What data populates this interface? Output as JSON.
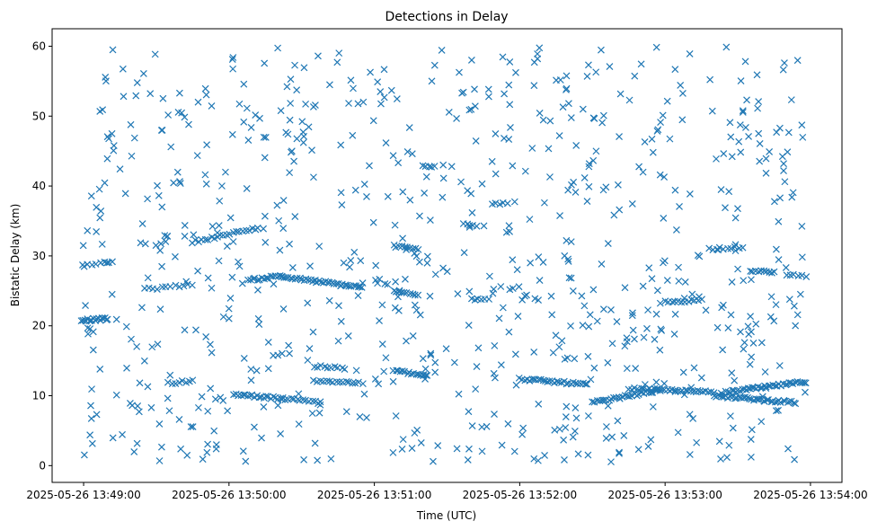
{
  "chart_data": {
    "type": "scatter",
    "title": "Detections in Delay",
    "xlabel": "Time (UTC)",
    "ylabel": "Bistatic Delay (km)",
    "marker": "x",
    "color": "#1f77b4",
    "grid": false,
    "xlim": [
      "2025-05-26 13:48:47",
      "2025-05-26 13:54:13"
    ],
    "ylim": [
      -2.4,
      62.5
    ],
    "x_ticks": [
      "2025-05-26 13:49:00",
      "2025-05-26 13:50:00",
      "2025-05-26 13:51:00",
      "2025-05-26 13:52:00",
      "2025-05-26 13:53:00",
      "2025-05-26 13:54:00"
    ],
    "y_ticks": [
      "0",
      "10",
      "20",
      "30",
      "40",
      "50",
      "60"
    ],
    "points_note": "",
    "tracks": [
      {
        "x": [
          "2025-05-26 13:48:59",
          "2025-05-26 13:49:10"
        ],
        "y": [
          20.8,
          21.0
        ],
        "n": 18
      },
      {
        "x": [
          "2025-05-26 13:49:00",
          "2025-05-26 13:49:12"
        ],
        "y": [
          28.5,
          29.3
        ],
        "n": 8
      },
      {
        "x": [
          "2025-05-26 13:49:25",
          "2025-05-26 13:49:45"
        ],
        "y": [
          25.2,
          25.9
        ],
        "n": 12
      },
      {
        "x": [
          "2025-05-26 13:49:35",
          "2025-05-26 13:49:45"
        ],
        "y": [
          11.8,
          12.1
        ],
        "n": 8
      },
      {
        "x": [
          "2025-05-26 13:49:45",
          "2025-05-26 13:50:12"
        ],
        "y": [
          32.0,
          34.0
        ],
        "n": 22
      },
      {
        "x": [
          "2025-05-26 13:50:02",
          "2025-05-26 13:50:22"
        ],
        "y": [
          10.2,
          9.6
        ],
        "n": 22
      },
      {
        "x": [
          "2025-05-26 13:50:08",
          "2025-05-26 13:50:22"
        ],
        "y": [
          26.5,
          27.2
        ],
        "n": 16
      },
      {
        "x": [
          "2025-05-26 13:50:22",
          "2025-05-26 13:50:55"
        ],
        "y": [
          27.0,
          25.5
        ],
        "n": 38
      },
      {
        "x": [
          "2025-05-26 13:50:22",
          "2025-05-26 13:50:38"
        ],
        "y": [
          9.6,
          9.0
        ],
        "n": 14
      },
      {
        "x": [
          "2025-05-26 13:50:35",
          "2025-05-26 13:50:55"
        ],
        "y": [
          12.2,
          11.8
        ],
        "n": 16
      },
      {
        "x": [
          "2025-05-26 13:50:35",
          "2025-05-26 13:50:48"
        ],
        "y": [
          14.2,
          13.9
        ],
        "n": 10
      },
      {
        "x": [
          "2025-05-26 13:51:08",
          "2025-05-26 13:51:22"
        ],
        "y": [
          13.6,
          12.8
        ],
        "n": 16
      },
      {
        "x": [
          "2025-05-26 13:51:08",
          "2025-05-26 13:51:18"
        ],
        "y": [
          31.4,
          31.0
        ],
        "n": 10
      },
      {
        "x": [
          "2025-05-26 13:51:08",
          "2025-05-26 13:51:18"
        ],
        "y": [
          24.9,
          24.5
        ],
        "n": 10
      },
      {
        "x": [
          "2025-05-26 13:51:20",
          "2025-05-26 13:51:25"
        ],
        "y": [
          43.0,
          42.8
        ],
        "n": 5
      },
      {
        "x": [
          "2025-05-26 13:51:37",
          "2025-05-26 13:51:42"
        ],
        "y": [
          34.6,
          34.4
        ],
        "n": 5
      },
      {
        "x": [
          "2025-05-26 13:51:40",
          "2025-05-26 13:51:47"
        ],
        "y": [
          23.9,
          23.7
        ],
        "n": 6
      },
      {
        "x": [
          "2025-05-26 13:51:50",
          "2025-05-26 13:51:55"
        ],
        "y": [
          37.6,
          37.4
        ],
        "n": 4
      },
      {
        "x": [
          "2025-05-26 13:52:00",
          "2025-05-26 13:52:28"
        ],
        "y": [
          12.4,
          11.6
        ],
        "n": 30
      },
      {
        "x": [
          "2025-05-26 13:52:30",
          "2025-05-26 13:52:58"
        ],
        "y": [
          9.0,
          10.8
        ],
        "n": 30
      },
      {
        "x": [
          "2025-05-26 13:52:45",
          "2025-05-26 13:53:20"
        ],
        "y": [
          11.0,
          10.5
        ],
        "n": 34
      },
      {
        "x": [
          "2025-05-26 13:53:00",
          "2025-05-26 13:53:15"
        ],
        "y": [
          23.4,
          23.7
        ],
        "n": 12
      },
      {
        "x": [
          "2025-05-26 13:53:18",
          "2025-05-26 13:53:32"
        ],
        "y": [
          31.0,
          31.3
        ],
        "n": 10
      },
      {
        "x": [
          "2025-05-26 13:53:20",
          "2025-05-26 13:53:54"
        ],
        "y": [
          10.0,
          9.0
        ],
        "n": 40
      },
      {
        "x": [
          "2025-05-26 13:53:25",
          "2025-05-26 13:53:58"
        ],
        "y": [
          10.5,
          12.0
        ],
        "n": 40
      },
      {
        "x": [
          "2025-05-26 13:53:35",
          "2025-05-26 13:53:45"
        ],
        "y": [
          27.9,
          27.6
        ],
        "n": 10
      },
      {
        "x": [
          "2025-05-26 13:53:50",
          "2025-05-26 13:53:58"
        ],
        "y": [
          27.3,
          27.1
        ],
        "n": 6
      }
    ],
    "clutter": {
      "x": [
        "2025-05-26 13:48:59",
        "2025-05-26 13:53:58"
      ],
      "y": [
        0.5,
        60.0
      ],
      "n": 780
    }
  }
}
